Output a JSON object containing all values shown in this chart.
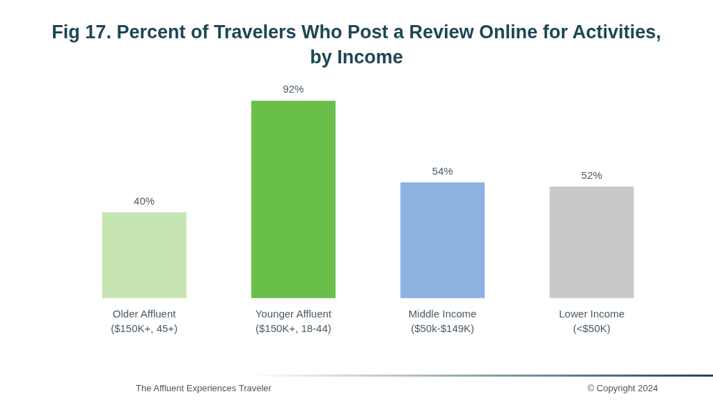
{
  "chart_data": {
    "type": "bar",
    "title": "Fig 17. Percent of Travelers Who Post a Review Online for Activities, by Income",
    "categories": [
      "Older Affluent\n($150K+, 45+)",
      "Younger Affluent\n($150K+, 18-44)",
      "Middle Income\n($50k-$149K)",
      "Lower Income\n(<$50K)"
    ],
    "values": [
      40,
      92,
      54,
      52
    ],
    "colors": [
      "#c5e5b3",
      "#6abf4b",
      "#8db3e2",
      "#c9c9c9"
    ],
    "value_labels": [
      "40%",
      "92%",
      "54%",
      "52%"
    ],
    "annotations": [
      "The Affluent Experiences Traveler",
      "© Copyright 2024"
    ]
  }
}
